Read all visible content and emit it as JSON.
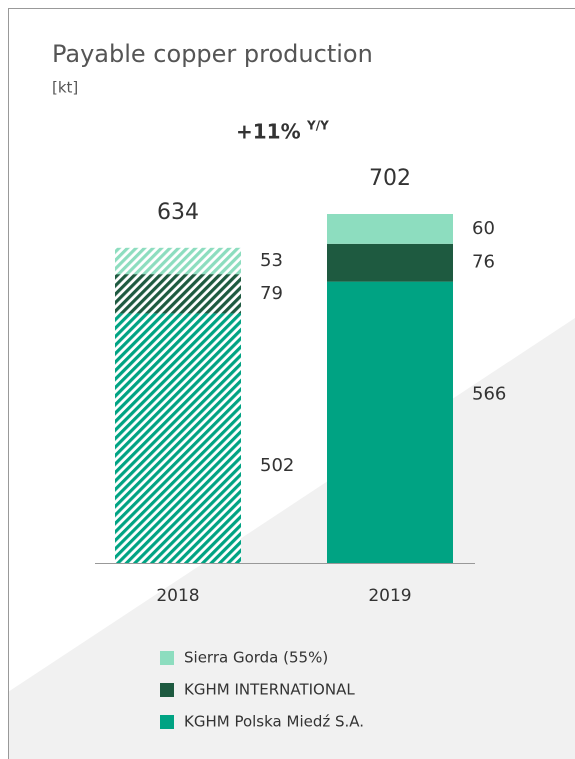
{
  "chart_data": {
    "type": "stacked_bar",
    "title": "Payable copper production",
    "subtitle": "[kt]",
    "annotation": "+11%",
    "annotation_suffix": "Y/Y",
    "categories": [
      "2018",
      "2019"
    ],
    "totals": [
      634,
      702
    ],
    "hatched": [
      true,
      false
    ],
    "series": [
      {
        "name": "KGHM Polska Miedź S.A.",
        "color": "#00a383",
        "values": [
          502,
          566
        ]
      },
      {
        "name": "KGHM INTERNATIONAL",
        "color": "#1e5a40",
        "values": [
          79,
          76
        ]
      },
      {
        "name": "Sierra Gorda (55%)",
        "color": "#8dddbf",
        "values": [
          53,
          60
        ]
      }
    ]
  }
}
